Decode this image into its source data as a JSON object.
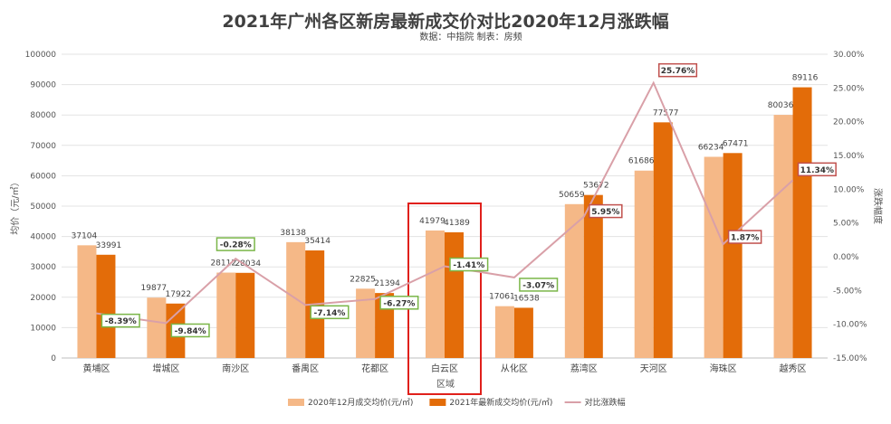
{
  "chart_data": {
    "type": "bar",
    "title": "2021年广州各区新房最新成交价对比2020年12月涨跌幅",
    "subtitle": "数据：中指院 制表：房频",
    "xlabel": "区域",
    "ylabel": "均价（元/㎡）",
    "y2label": "涨跌幅度",
    "categories": [
      "黄埔区",
      "增城区",
      "南沙区",
      "番禺区",
      "花都区",
      "白云区",
      "从化区",
      "荔湾区",
      "天河区",
      "海珠区",
      "越秀区"
    ],
    "series": [
      {
        "name": "2020年12月成交均价(元/㎡)",
        "color": "#F5B887",
        "values": [
          37104,
          19877,
          28112,
          38138,
          22825,
          41979,
          17061,
          50659,
          61686,
          66234,
          80036
        ]
      },
      {
        "name": "2021年最新成交均价(元/㎡)",
        "color": "#E36C09",
        "values": [
          33991,
          17922,
          28034,
          35414,
          21394,
          41389,
          16538,
          53672,
          77577,
          67471,
          89116
        ]
      }
    ],
    "line_series": {
      "name": "对比涨跌幅",
      "color": "#D9A0A8",
      "values": [
        -8.39,
        -9.84,
        -0.28,
        -7.14,
        -6.27,
        -1.41,
        -3.07,
        5.95,
        25.76,
        1.87,
        11.34
      ],
      "labels": [
        "-8.39%",
        "-9.84%",
        "-0.28%",
        "-7.14%",
        "-6.27%",
        "-1.41%",
        "-3.07%",
        "5.95%",
        "25.76%",
        "1.87%",
        "11.34%"
      ]
    },
    "ylim": [
      0,
      100000
    ],
    "y_ticks": [
      "0",
      "10000",
      "20000",
      "30000",
      "40000",
      "50000",
      "60000",
      "70000",
      "80000",
      "90000",
      "100000"
    ],
    "y2lim": [
      -15,
      30
    ],
    "y2_ticks": [
      "-15.00%",
      "-10.00%",
      "-5.00%",
      "0.00%",
      "5.00%",
      "10.00%",
      "15.00%",
      "20.00%",
      "25.00%",
      "30.00%"
    ],
    "grid": true,
    "legend": "bottom",
    "highlight_category": "白云区",
    "colors": {
      "negative_box": "#7AB648",
      "positive_box": "#C0504D",
      "highlight_box": "#E0201B"
    }
  }
}
